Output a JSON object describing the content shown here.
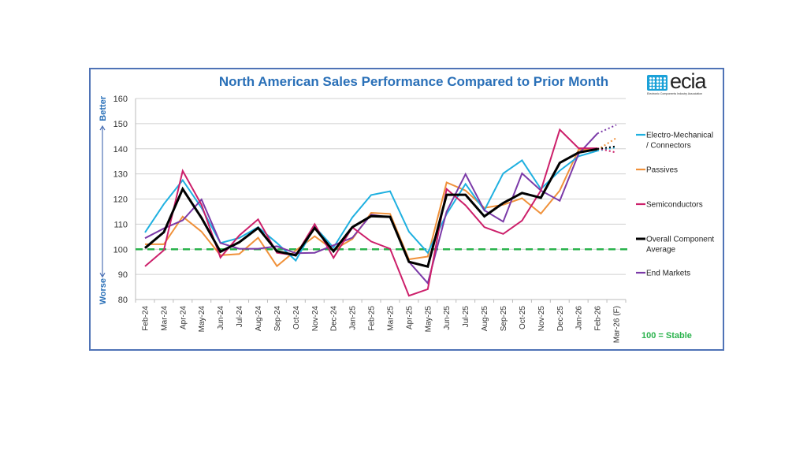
{
  "logo": {
    "text": "ecia",
    "subtitle": "Electronic Components Industry Association"
  },
  "chart_data": {
    "type": "line",
    "title": "North American Sales Performance Compared to Prior Month",
    "xlabel": "",
    "ylabel": "",
    "y_axis_annotations": {
      "top": "Better",
      "bottom": "Worse"
    },
    "ylim": [
      80,
      160
    ],
    "yticks": [
      80,
      90,
      100,
      110,
      120,
      130,
      140,
      150,
      160
    ],
    "grid": true,
    "legend_position": "right",
    "reference_line": {
      "value": 100,
      "label": "100 = Stable",
      "color": "#2bb34d",
      "style": "dashed"
    },
    "categories": [
      "Feb-24",
      "Mar-24",
      "Apr-24",
      "May-24",
      "Jun-24",
      "Jul-24",
      "Aug-24",
      "Sep-24",
      "Oct-24",
      "Nov-24",
      "Dec-24",
      "Jan-25",
      "Feb-25",
      "Mar-25",
      "Apr-25",
      "May-25",
      "Jun-25",
      "Jul-25",
      "Aug-25",
      "Sep-25",
      "Oct-25",
      "Nov-25",
      "Dec-25",
      "Jan-26",
      "Feb-26",
      "Mar-26 (F)"
    ],
    "forecast_last_point": true,
    "series": [
      {
        "name": "Electro-Mechanical / Connectors",
        "legend_lines": [
          "Electro-Mechanical",
          "/ Connectors"
        ],
        "color": "#1fb0e0",
        "values": [
          106.7,
          118,
          127.5,
          116.5,
          102.5,
          104.5,
          108.8,
          102.5,
          95.5,
          109,
          100.7,
          112.7,
          121.6,
          123.1,
          107,
          98.6,
          114,
          126,
          115.5,
          130.2,
          135.4,
          124,
          131.3,
          137,
          139.2,
          140.6
        ]
      },
      {
        "name": "Passives",
        "legend_lines": [
          "Passives"
        ],
        "color": "#f0913a",
        "values": [
          102,
          102,
          113,
          107,
          97.6,
          98.1,
          104.6,
          93.3,
          99.5,
          105.2,
          99.7,
          104.1,
          114.5,
          114.1,
          96,
          97.1,
          126.6,
          123.4,
          116.5,
          117.7,
          120.3,
          114.2,
          123.4,
          139.6,
          139.6,
          144.3
        ]
      },
      {
        "name": "Semiconductors",
        "legend_lines": [
          "Semiconductors"
        ],
        "color": "#cc1f6a",
        "values": [
          93.2,
          99.6,
          131.2,
          117.7,
          96.7,
          105.5,
          111.9,
          98.6,
          97.6,
          110,
          96.6,
          108.7,
          103.1,
          100.2,
          81.5,
          84.1,
          124,
          117.5,
          108.8,
          106.1,
          111.4,
          123.4,
          147.6,
          140.2,
          140.2,
          138.5
        ]
      },
      {
        "name": "Overall Component Average",
        "legend_lines": [
          "Overall Component",
          "Average"
        ],
        "color": "#000000",
        "values": [
          100.5,
          106.8,
          124,
          112.5,
          99,
          102.8,
          108.5,
          99.2,
          97.6,
          108.5,
          99.2,
          108.8,
          113.2,
          112.9,
          95,
          93.1,
          121.7,
          121.7,
          113.1,
          118.4,
          122.4,
          120.5,
          134.4,
          138.5,
          139.9,
          141
        ]
      },
      {
        "name": "End Markets",
        "legend_lines": [
          "End Markets"
        ],
        "color": "#7b3aa8",
        "values": [
          104.4,
          108.3,
          111.5,
          119.8,
          102.5,
          100.2,
          100.2,
          101.2,
          98.4,
          98.6,
          101.6,
          104.6,
          113.8,
          112.7,
          95,
          86.5,
          115,
          129.9,
          115.5,
          111,
          130.2,
          123.4,
          119.3,
          138,
          146.1,
          149.5
        ]
      }
    ]
  }
}
